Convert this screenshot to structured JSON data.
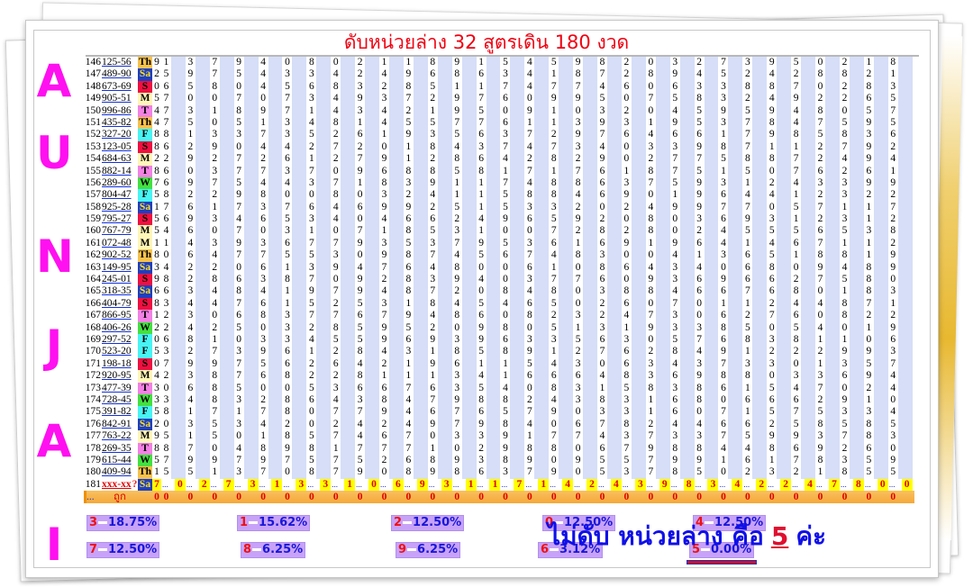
{
  "title": "ดับหน่วยล่าง 32 สูตรเดิน 180 งวด",
  "brand_letters": [
    "A",
    "U",
    "N",
    "J",
    "A",
    "I"
  ],
  "colors": {
    "title": "#f00010",
    "brand": "#ff10f0",
    "stripe": "#d6def8",
    "current_row": "#ffff00",
    "hit_row": "#f6a838"
  },
  "table": {
    "rows": [
      {
        "no": "146",
        "result": "125-56",
        "day": "Th",
        "digits": "91379408021189154598203273950218"
      },
      {
        "no": "147",
        "result": "489-90",
        "day": "Sa",
        "digits": "25975433424968634187289452428821"
      },
      {
        "no": "148",
        "result": "673-69",
        "day": "S",
        "digits": "06580456832851174774606338870283"
      },
      {
        "no": "149",
        "result": "905-51",
        "day": "M",
        "digits": "57007073493729760995075832492265"
      },
      {
        "no": "150",
        "result": "996-86",
        "day": "T",
        "digits": "47318971434219509103204595948057"
      },
      {
        "no": "151",
        "result": "435-82",
        "day": "Th",
        "digits": "47505134814557761139319537847595"
      },
      {
        "no": "152",
        "result": "327-20",
        "day": "F",
        "digits": "88133735261935637297646617985836"
      },
      {
        "no": "153",
        "result": "123-05",
        "day": "S",
        "digits": "86290442720184374734033987112792"
      },
      {
        "no": "154",
        "result": "684-63",
        "day": "M",
        "digits": "22927261279128642829027758872494"
      },
      {
        "no": "155",
        "result": "882-14",
        "day": "T",
        "digits": "86037737096885817176187515076261"
      },
      {
        "no": "156",
        "result": "289-60",
        "day": "W",
        "digits": "76975443718391174886375931243399"
      },
      {
        "no": "157",
        "result": "804-47",
        "day": "F",
        "digits": "58229800803241158846901964412322"
      },
      {
        "no": "158",
        "result": "925-28",
        "day": "Sa",
        "digits": "17617376469925153320249977057117"
      },
      {
        "no": "159",
        "result": "795-27",
        "day": "S",
        "digits": "56934653404662496592080369312312"
      },
      {
        "no": "160",
        "result": "767-79",
        "day": "M",
        "digits": "54607031071853100728280245556538"
      },
      {
        "no": "161",
        "result": "072-48",
        "day": "M",
        "digits": "11439367793537953616919641467112"
      },
      {
        "no": "162",
        "result": "902-52",
        "day": "Th",
        "digits": "80647755309874567483004136518819"
      },
      {
        "no": "163",
        "result": "149-95",
        "day": "Sa",
        "digits": "34220613947648006108643406809489"
      },
      {
        "no": "164",
        "result": "245-01",
        "day": "S",
        "digits": "98286387092839403776093696627580"
      },
      {
        "no": "165",
        "result": "318-35",
        "day": "Sa",
        "digits": "66348419794872084803884667680183"
      },
      {
        "no": "166",
        "result": "404-79",
        "day": "S",
        "digits": "83447615253184546502607011244871"
      },
      {
        "no": "167",
        "result": "866-95",
        "day": "T",
        "digits": "12306837767948608232473062760822"
      },
      {
        "no": "168",
        "result": "406-26",
        "day": "W",
        "digits": "22425032859520980513193385054019"
      },
      {
        "no": "169",
        "result": "297-52",
        "day": "F",
        "digits": "06810334559693963356305768381106"
      },
      {
        "no": "170",
        "result": "523-20",
        "day": "F",
        "digits": "53273961284318589127628491222993"
      },
      {
        "no": "171",
        "result": "198-18",
        "day": "S",
        "digits": "07997562642196115430634373301357"
      },
      {
        "no": "172",
        "result": "920-95",
        "day": "M",
        "digits": "42387682281113416664836988033694"
      },
      {
        "no": "173",
        "result": "477-39",
        "day": "T",
        "digits": "30685005366763540831583861547024"
      },
      {
        "no": "174",
        "result": "728-45",
        "day": "W",
        "digits": "33483286438479882438316806662910"
      },
      {
        "no": "175",
        "result": "391-82",
        "day": "F",
        "digits": "58171780779467657903316071575334"
      },
      {
        "no": "176",
        "result": "842-91",
        "day": "Sa",
        "digits": "20353420242497984067824466258585"
      },
      {
        "no": "177",
        "result": "763-22",
        "day": "M",
        "digits": "95150185746703391774373375993783"
      },
      {
        "no": "178",
        "result": "269-35",
        "day": "T",
        "digits": "88704898177710298806798844869260"
      },
      {
        "no": "179",
        "result": "615-44",
        "day": "W",
        "digits": "57997975752689389095579916178359"
      },
      {
        "no": "180",
        "result": "409-94",
        "day": "Th",
        "digits": "15513708790898637905378502321855"
      }
    ],
    "current": {
      "no": "181",
      "result": "xxx-xx",
      "mark": "?",
      "day": "Sa",
      "digits": "70273133106931171424398342247800",
      "separator": "..."
    },
    "hits": {
      "label": "...",
      "title": "ถูก",
      "values": "00000000000000000000000000000000"
    }
  },
  "stats": [
    [
      {
        "digit": "3",
        "pct": "18.75%"
      },
      {
        "digit": "1",
        "pct": "15.62%"
      },
      {
        "digit": "2",
        "pct": "12.50%"
      },
      {
        "digit": "0",
        "pct": "12.50%"
      },
      {
        "digit": "4",
        "pct": "12.50%"
      }
    ],
    [
      {
        "digit": "7",
        "pct": "12.50%"
      },
      {
        "digit": "8",
        "pct": "6.25%"
      },
      {
        "digit": "9",
        "pct": "6.25%"
      },
      {
        "digit": "6",
        "pct": "3.12%"
      },
      {
        "digit": "5",
        "pct": "0.00%",
        "marked": true
      }
    ]
  ],
  "answer": {
    "prefix": "ไม่ดับ หน่วยล่าง คือ",
    "number": "5",
    "suffix": "ค่ะ"
  }
}
